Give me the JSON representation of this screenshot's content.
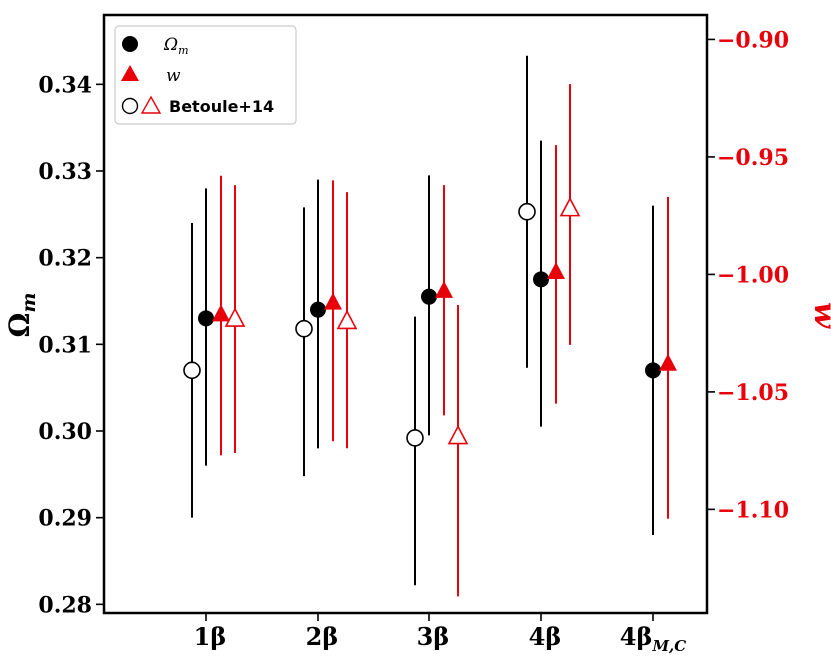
{
  "chart_data": {
    "type": "scatter",
    "categories": [
      "1β",
      "2β",
      "3β",
      "4β",
      "4β"
    ],
    "category_subscripts": [
      "",
      "",
      "",
      "",
      "M,C"
    ],
    "left_axis": {
      "label": "Ω",
      "label_subscript": "m",
      "ylim": [
        0.279,
        0.348
      ],
      "ticks": [
        0.28,
        0.29,
        0.3,
        0.31,
        0.32,
        0.33,
        0.34
      ],
      "tick_labels": [
        "0.28",
        "0.29",
        "0.30",
        "0.31",
        "0.32",
        "0.33",
        "0.34"
      ],
      "color": "#000000"
    },
    "right_axis": {
      "label": "w",
      "ylim": [
        -1.1441,
        -0.8896
      ],
      "ticks": [
        -0.9,
        -0.95,
        -1.0,
        -1.05,
        -1.1
      ],
      "tick_labels": [
        "−0.90",
        "−0.95",
        "−1.00",
        "−1.05",
        "−1.10"
      ],
      "color": "#e8000b"
    },
    "series": [
      {
        "name": "Ω_m",
        "axis": "left",
        "marker": "filled-circle",
        "color": "#000000",
        "points": [
          {
            "category": 0,
            "y": 0.313,
            "lo": 0.296,
            "hi": 0.328
          },
          {
            "category": 1,
            "y": 0.314,
            "lo": 0.298,
            "hi": 0.329
          },
          {
            "category": 2,
            "y": 0.3155,
            "lo": 0.2995,
            "hi": 0.3295
          },
          {
            "category": 3,
            "y": 0.3175,
            "lo": 0.3005,
            "hi": 0.3335
          },
          {
            "category": 4,
            "y": 0.307,
            "lo": 0.288,
            "hi": 0.326
          }
        ]
      },
      {
        "name": "w",
        "axis": "right",
        "marker": "filled-triangle",
        "color": "#e8000b",
        "points": [
          {
            "category": 0,
            "y": -1.017,
            "lo": -1.077,
            "hi": -0.958
          },
          {
            "category": 1,
            "y": -1.012,
            "lo": -1.071,
            "hi": -0.96
          },
          {
            "category": 2,
            "y": -1.007,
            "lo": -1.06,
            "hi": -0.962
          },
          {
            "category": 3,
            "y": -0.999,
            "lo": -1.055,
            "hi": -0.945
          },
          {
            "category": 4,
            "y": -1.038,
            "lo": -1.104,
            "hi": -0.967
          }
        ]
      },
      {
        "name": "Betoule+14",
        "axis": "left",
        "marker": "open-circle",
        "color": "#000000",
        "points": [
          {
            "category": 0,
            "y": 0.307,
            "lo": 0.29,
            "hi": 0.324
          },
          {
            "category": 1,
            "y": 0.3118,
            "lo": 0.2948,
            "hi": 0.3258
          },
          {
            "category": 2,
            "y": 0.2992,
            "lo": 0.2822,
            "hi": 0.3132
          },
          {
            "category": 3,
            "y": 0.3253,
            "lo": 0.3073,
            "hi": 0.3433
          }
        ]
      },
      {
        "name": "Betoule+14 w",
        "axis": "right",
        "marker": "open-triangle",
        "color": "#e8000b",
        "points": [
          {
            "category": 0,
            "y": -1.019,
            "lo": -1.076,
            "hi": -0.962
          },
          {
            "category": 1,
            "y": -1.02,
            "lo": -1.074,
            "hi": -0.965
          },
          {
            "category": 2,
            "y": -1.069,
            "lo": -1.137,
            "hi": -1.013
          },
          {
            "category": 3,
            "y": -0.972,
            "lo": -1.03,
            "hi": -0.919
          }
        ]
      }
    ],
    "legend": {
      "placement": "top-left",
      "entries": [
        {
          "label": "Ω",
          "subscript": "m",
          "style": "italic-math",
          "markers": [
            "filled-circle"
          ]
        },
        {
          "label": "w",
          "subscript": "",
          "style": "italic-math",
          "markers": [
            "filled-triangle"
          ]
        },
        {
          "label": "Betoule+14",
          "subscript": "",
          "style": "bold",
          "markers": [
            "open-circle",
            "open-triangle"
          ]
        }
      ]
    },
    "grid": false
  }
}
